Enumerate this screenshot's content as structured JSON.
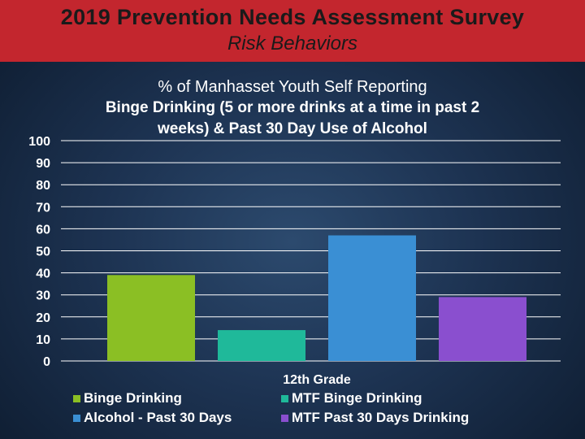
{
  "header": {
    "title": "2019 Prevention Needs Assessment Survey",
    "subtitle": "Risk Behaviors"
  },
  "chart_data": {
    "type": "bar",
    "title_lines": [
      "% of Manhasset Youth Self Reporting",
      "Binge Drinking (5 or more drinks at a time in past 2",
      "weeks) & Past 30 Day Use of Alcohol"
    ],
    "categories": [
      "12th Grade"
    ],
    "series": [
      {
        "name": "Binge Drinking",
        "values": [
          39
        ],
        "color": "#8bbf24"
      },
      {
        "name": "MTF Binge Drinking",
        "values": [
          14
        ],
        "color": "#1fb99a"
      },
      {
        "name": "Alcohol - Past 30 Days",
        "values": [
          57
        ],
        "color": "#3a8fd4"
      },
      {
        "name": "MTF Past 30 Days Drinking",
        "values": [
          29
        ],
        "color": "#8a4fcf"
      }
    ],
    "ylim": [
      0,
      100
    ],
    "yticks": [
      "0",
      "10",
      "20",
      "30",
      "40",
      "50",
      "60",
      "70",
      "80",
      "90",
      "100"
    ],
    "grid": true,
    "legend_position": "bottom"
  }
}
